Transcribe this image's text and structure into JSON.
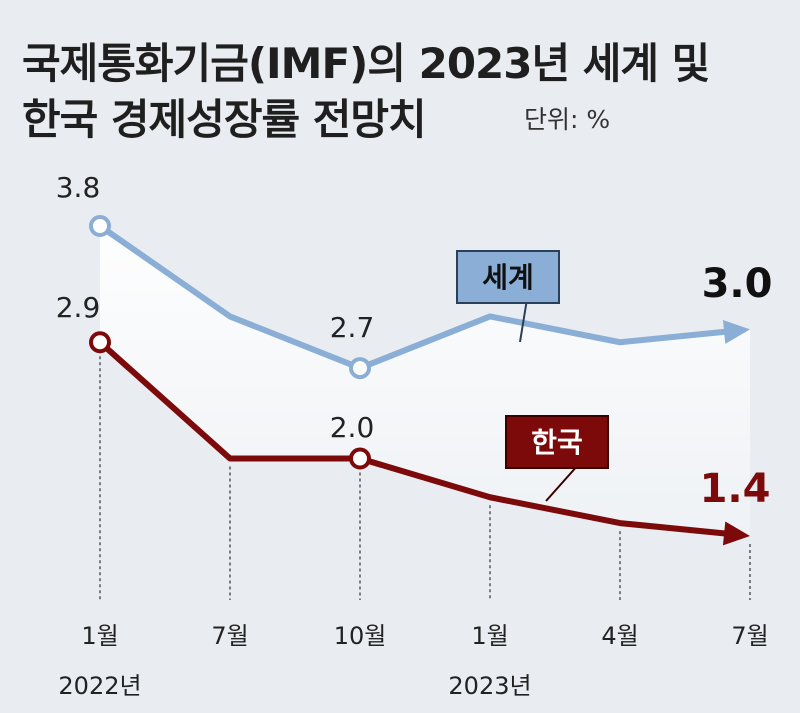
{
  "title_line1": "국제통화기금(IMF)의 2023년 세계 및",
  "title_line2": "한국 경제성장률 전망치",
  "unit": "단위: %",
  "colors": {
    "world": "#8aaed6",
    "korea": "#7d0a0a",
    "background": "#e9edf2"
  },
  "chart_data": {
    "type": "line",
    "x": [
      "1월",
      "7월",
      "10월",
      "1월",
      "4월",
      "7월"
    ],
    "year_labels": [
      {
        "label": "2022년",
        "index": 0
      },
      {
        "label": "2023년",
        "index": 3
      }
    ],
    "ylim": [
      0.8,
      4.2
    ],
    "grid": false,
    "series": [
      {
        "name": "세계",
        "color": "#8aaed6",
        "values": [
          3.8,
          3.1,
          2.7,
          3.1,
          2.9,
          3.0
        ],
        "data_labels": {
          "0": "3.8",
          "2": "2.7",
          "5": "3.0"
        }
      },
      {
        "name": "한국",
        "color": "#7d0a0a",
        "values": [
          2.9,
          2.0,
          2.0,
          1.7,
          1.5,
          1.4
        ],
        "data_labels": {
          "0": "2.9",
          "2": "2.0",
          "5": "1.4"
        }
      }
    ]
  }
}
